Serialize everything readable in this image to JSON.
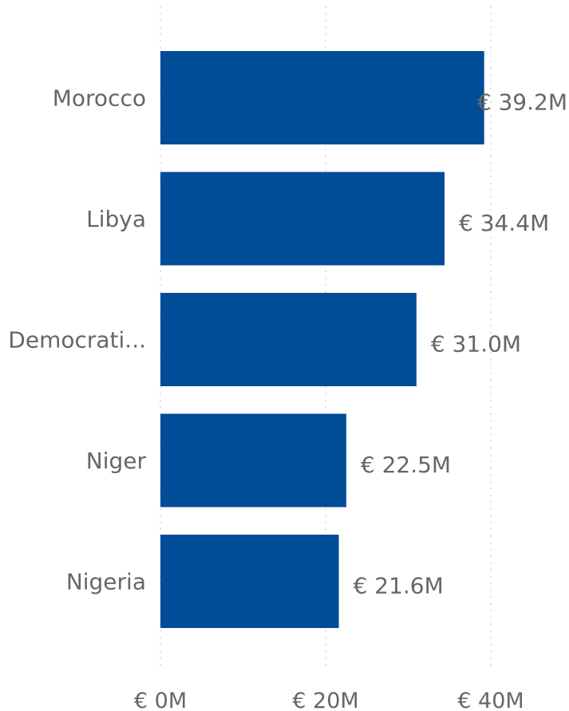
{
  "chart_data": {
    "type": "bar",
    "orientation": "horizontal",
    "categories": [
      "Morocco",
      "Libya",
      "Democrati...",
      "Niger",
      "Nigeria"
    ],
    "values": [
      39.2,
      34.4,
      31.0,
      22.5,
      21.6
    ],
    "data_labels": [
      "€ 39.2M",
      "€ 34.4M",
      "€ 31.0M",
      "€ 22.5M",
      "€ 21.6M"
    ],
    "xticks": [
      0,
      20,
      40
    ],
    "xtick_labels": [
      "€ 0M",
      "€ 20M",
      "€ 40M"
    ],
    "xlim": [
      0,
      40
    ],
    "grid": true,
    "bar_color": "#004C97",
    "text_color": "#666666",
    "grid_color": "#c8c8c8"
  }
}
